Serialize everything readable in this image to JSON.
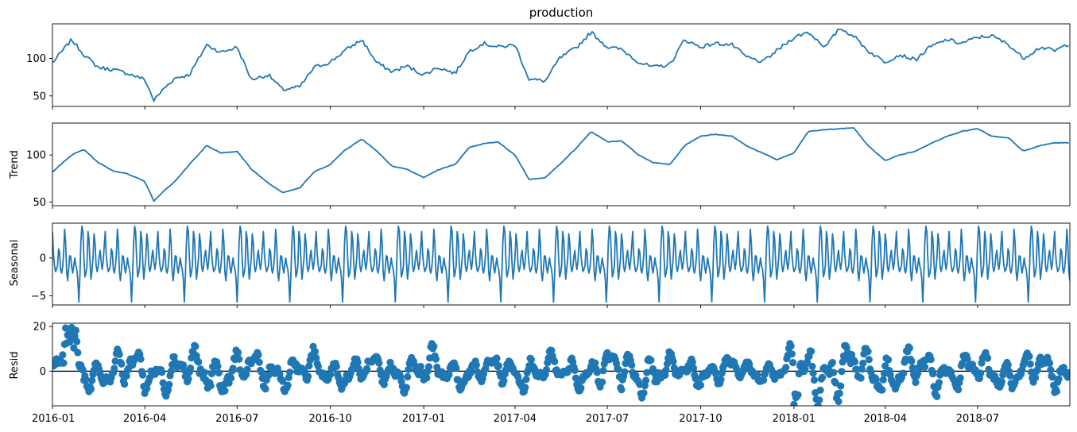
{
  "chart_data": [
    {
      "type": "line",
      "panel": "observed",
      "title": "production",
      "ylabel": "",
      "ylim": [
        36,
        146
      ],
      "yticks": [
        "50",
        "100"
      ],
      "ytick_values": [
        50,
        100
      ],
      "series": [
        {
          "x": [
            "2016-01-01",
            "2016-01-20",
            "2016-02-01",
            "2016-02-15",
            "2016-03-01",
            "2016-03-15",
            "2016-04-01",
            "2016-04-10",
            "2016-04-20",
            "2016-05-01",
            "2016-05-15",
            "2016-06-01",
            "2016-06-15",
            "2016-07-01",
            "2016-07-15",
            "2016-08-01",
            "2016-08-15",
            "2016-09-01",
            "2016-09-15",
            "2016-10-01",
            "2016-10-15",
            "2016-11-01",
            "2016-11-15",
            "2016-12-01",
            "2016-12-15",
            "2017-01-01",
            "2017-01-15",
            "2017-02-01",
            "2017-02-15",
            "2017-03-01",
            "2017-03-15",
            "2017-04-01",
            "2017-04-15",
            "2017-05-01",
            "2017-05-15",
            "2017-06-01",
            "2017-06-15",
            "2017-07-01",
            "2017-07-15",
            "2017-08-01",
            "2017-08-15",
            "2017-09-01",
            "2017-09-15",
            "2017-10-01",
            "2017-10-15",
            "2017-11-01",
            "2017-11-15",
            "2017-12-01",
            "2017-12-15",
            "2018-01-01",
            "2018-01-15",
            "2018-02-01",
            "2018-02-15",
            "2018-03-01",
            "2018-03-15",
            "2018-04-01",
            "2018-04-15",
            "2018-05-01",
            "2018-05-15",
            "2018-06-01",
            "2018-06-15",
            "2018-07-01",
            "2018-07-15",
            "2018-08-01",
            "2018-08-15",
            "2018-09-01",
            "2018-09-15",
            "2018-09-30"
          ],
          "values": [
            94,
            125,
            105,
            88,
            85,
            80,
            72,
            44,
            60,
            74,
            78,
            118,
            108,
            115,
            72,
            78,
            58,
            62,
            88,
            95,
            110,
            125,
            95,
            82,
            90,
            78,
            88,
            80,
            110,
            120,
            115,
            118,
            72,
            70,
            100,
            115,
            135,
            115,
            112,
            95,
            88,
            92,
            125,
            115,
            120,
            118,
            102,
            95,
            110,
            128,
            135,
            115,
            140,
            130,
            110,
            95,
            105,
            98,
            115,
            125,
            120,
            128,
            130,
            118,
            100,
            115,
            110,
            120
          ]
        }
      ]
    },
    {
      "type": "line",
      "panel": "trend",
      "ylabel": "Trend",
      "ylim": [
        46,
        134
      ],
      "yticks": [
        "50",
        "100"
      ],
      "ytick_values": [
        50,
        100
      ],
      "series": [
        {
          "x": [
            "2016-01-01",
            "2016-01-20",
            "2016-02-01",
            "2016-02-15",
            "2016-03-01",
            "2016-03-15",
            "2016-04-01",
            "2016-04-10",
            "2016-04-20",
            "2016-05-01",
            "2016-05-15",
            "2016-06-01",
            "2016-06-15",
            "2016-07-01",
            "2016-07-15",
            "2016-08-01",
            "2016-08-15",
            "2016-09-01",
            "2016-09-15",
            "2016-10-01",
            "2016-10-15",
            "2016-11-01",
            "2016-11-15",
            "2016-12-01",
            "2016-12-15",
            "2017-01-01",
            "2017-01-15",
            "2017-02-01",
            "2017-02-15",
            "2017-03-01",
            "2017-03-15",
            "2017-04-01",
            "2017-04-15",
            "2017-05-01",
            "2017-05-15",
            "2017-06-01",
            "2017-06-15",
            "2017-07-01",
            "2017-07-15",
            "2017-08-01",
            "2017-08-15",
            "2017-09-01",
            "2017-09-15",
            "2017-10-01",
            "2017-10-15",
            "2017-11-01",
            "2017-11-15",
            "2017-12-01",
            "2017-12-15",
            "2018-01-01",
            "2018-01-15",
            "2018-02-01",
            "2018-02-15",
            "2018-03-01",
            "2018-03-15",
            "2018-04-01",
            "2018-04-15",
            "2018-05-01",
            "2018-05-15",
            "2018-06-01",
            "2018-06-15",
            "2018-07-01",
            "2018-07-15",
            "2018-08-01",
            "2018-08-15",
            "2018-09-01",
            "2018-09-15",
            "2018-09-30"
          ],
          "values": [
            82,
            100,
            106,
            92,
            83,
            80,
            72,
            51,
            62,
            72,
            90,
            110,
            102,
            104,
            85,
            70,
            60,
            65,
            82,
            90,
            105,
            117,
            105,
            88,
            85,
            76,
            84,
            90,
            108,
            112,
            114,
            100,
            74,
            76,
            90,
            108,
            125,
            114,
            115,
            100,
            92,
            90,
            110,
            120,
            122,
            120,
            110,
            102,
            95,
            102,
            125,
            127,
            128,
            129,
            110,
            94,
            100,
            104,
            112,
            120,
            125,
            128,
            120,
            118,
            104,
            110,
            113,
            113
          ]
        }
      ]
    },
    {
      "type": "line",
      "panel": "seasonal",
      "ylabel": "Seasonal",
      "ylim": [
        -6.2,
        4.6
      ],
      "yticks": [
        "−5",
        "0"
      ],
      "ytick_values": [
        -5,
        0
      ],
      "period_days": 52,
      "pattern": [
        3.5,
        0.5,
        -1.0,
        -1.8,
        -1.5,
        -1.0,
        1.2,
        0.8,
        -1.5,
        -2.0,
        -1.2,
        0.5,
        3.8,
        2.0,
        -1.8,
        -3.0,
        -1.5,
        0.3,
        0.2,
        -1.2,
        -2.0,
        -1.0,
        0.0,
        -1.0,
        -1.5,
        -2.8,
        -5.8,
        -2.5,
        2.0,
        4.2,
        3.5,
        0.0,
        -2.5,
        -2.0,
        -1.0,
        3.5,
        2.5,
        -0.5,
        -2.8,
        -1.5,
        0.0,
        3.2,
        2.0,
        -1.0,
        -1.8,
        -1.2,
        0.2,
        1.0,
        -0.5,
        -1.5,
        -0.5,
        1.5
      ]
    },
    {
      "type": "scatter",
      "panel": "resid",
      "ylabel": "Resid",
      "ylim": [
        -15.5,
        21.5
      ],
      "yticks": [
        "0",
        "20"
      ],
      "ytick_values": [
        0,
        20
      ],
      "zero_line": true,
      "note_points_shape": "dense daily residuals oscillating around 0, mostly within ±12, max ≈ 20 near 2016-01, min ≈ -15 near 2018-01",
      "amplitude_profile_x": [
        "2016-01-01",
        "2016-01-10",
        "2016-01-20",
        "2016-02-15",
        "2016-03-10",
        "2016-04-20",
        "2016-06-20",
        "2016-08-10",
        "2016-09-01",
        "2016-11-01",
        "2016-12-10",
        "2017-01-05",
        "2017-02-20",
        "2017-04-05",
        "2017-06-10",
        "2017-07-05",
        "2017-07-25",
        "2017-09-10",
        "2017-11-01",
        "2017-12-20",
        "2018-01-01",
        "2018-01-10",
        "2018-02-15",
        "2018-03-10",
        "2018-05-01",
        "2018-07-15",
        "2018-09-20"
      ],
      "amplitude_profile_values": [
        6,
        12,
        20,
        6,
        12,
        10,
        12,
        9,
        10,
        7,
        9,
        11,
        7,
        9,
        8,
        11,
        12,
        8,
        7,
        5,
        14,
        14,
        15,
        12,
        11,
        9,
        10
      ]
    }
  ],
  "x_axis": {
    "xlim": [
      "2016-01-01",
      "2018-09-30"
    ],
    "tick_dates": [
      "2016-01-01",
      "2016-04-01",
      "2016-07-01",
      "2016-10-01",
      "2017-01-01",
      "2017-04-01",
      "2017-07-01",
      "2017-10-01",
      "2018-01-01",
      "2018-04-01",
      "2018-07-01"
    ],
    "tick_labels": [
      "2016-01",
      "2016-04",
      "2016-07",
      "2016-10",
      "2017-01",
      "2017-04",
      "2017-07",
      "2017-10",
      "2018-01",
      "2018-04",
      "2018-07"
    ]
  },
  "colors": {
    "series": "#1f77b4",
    "axis": "#000000",
    "background": "#ffffff"
  }
}
